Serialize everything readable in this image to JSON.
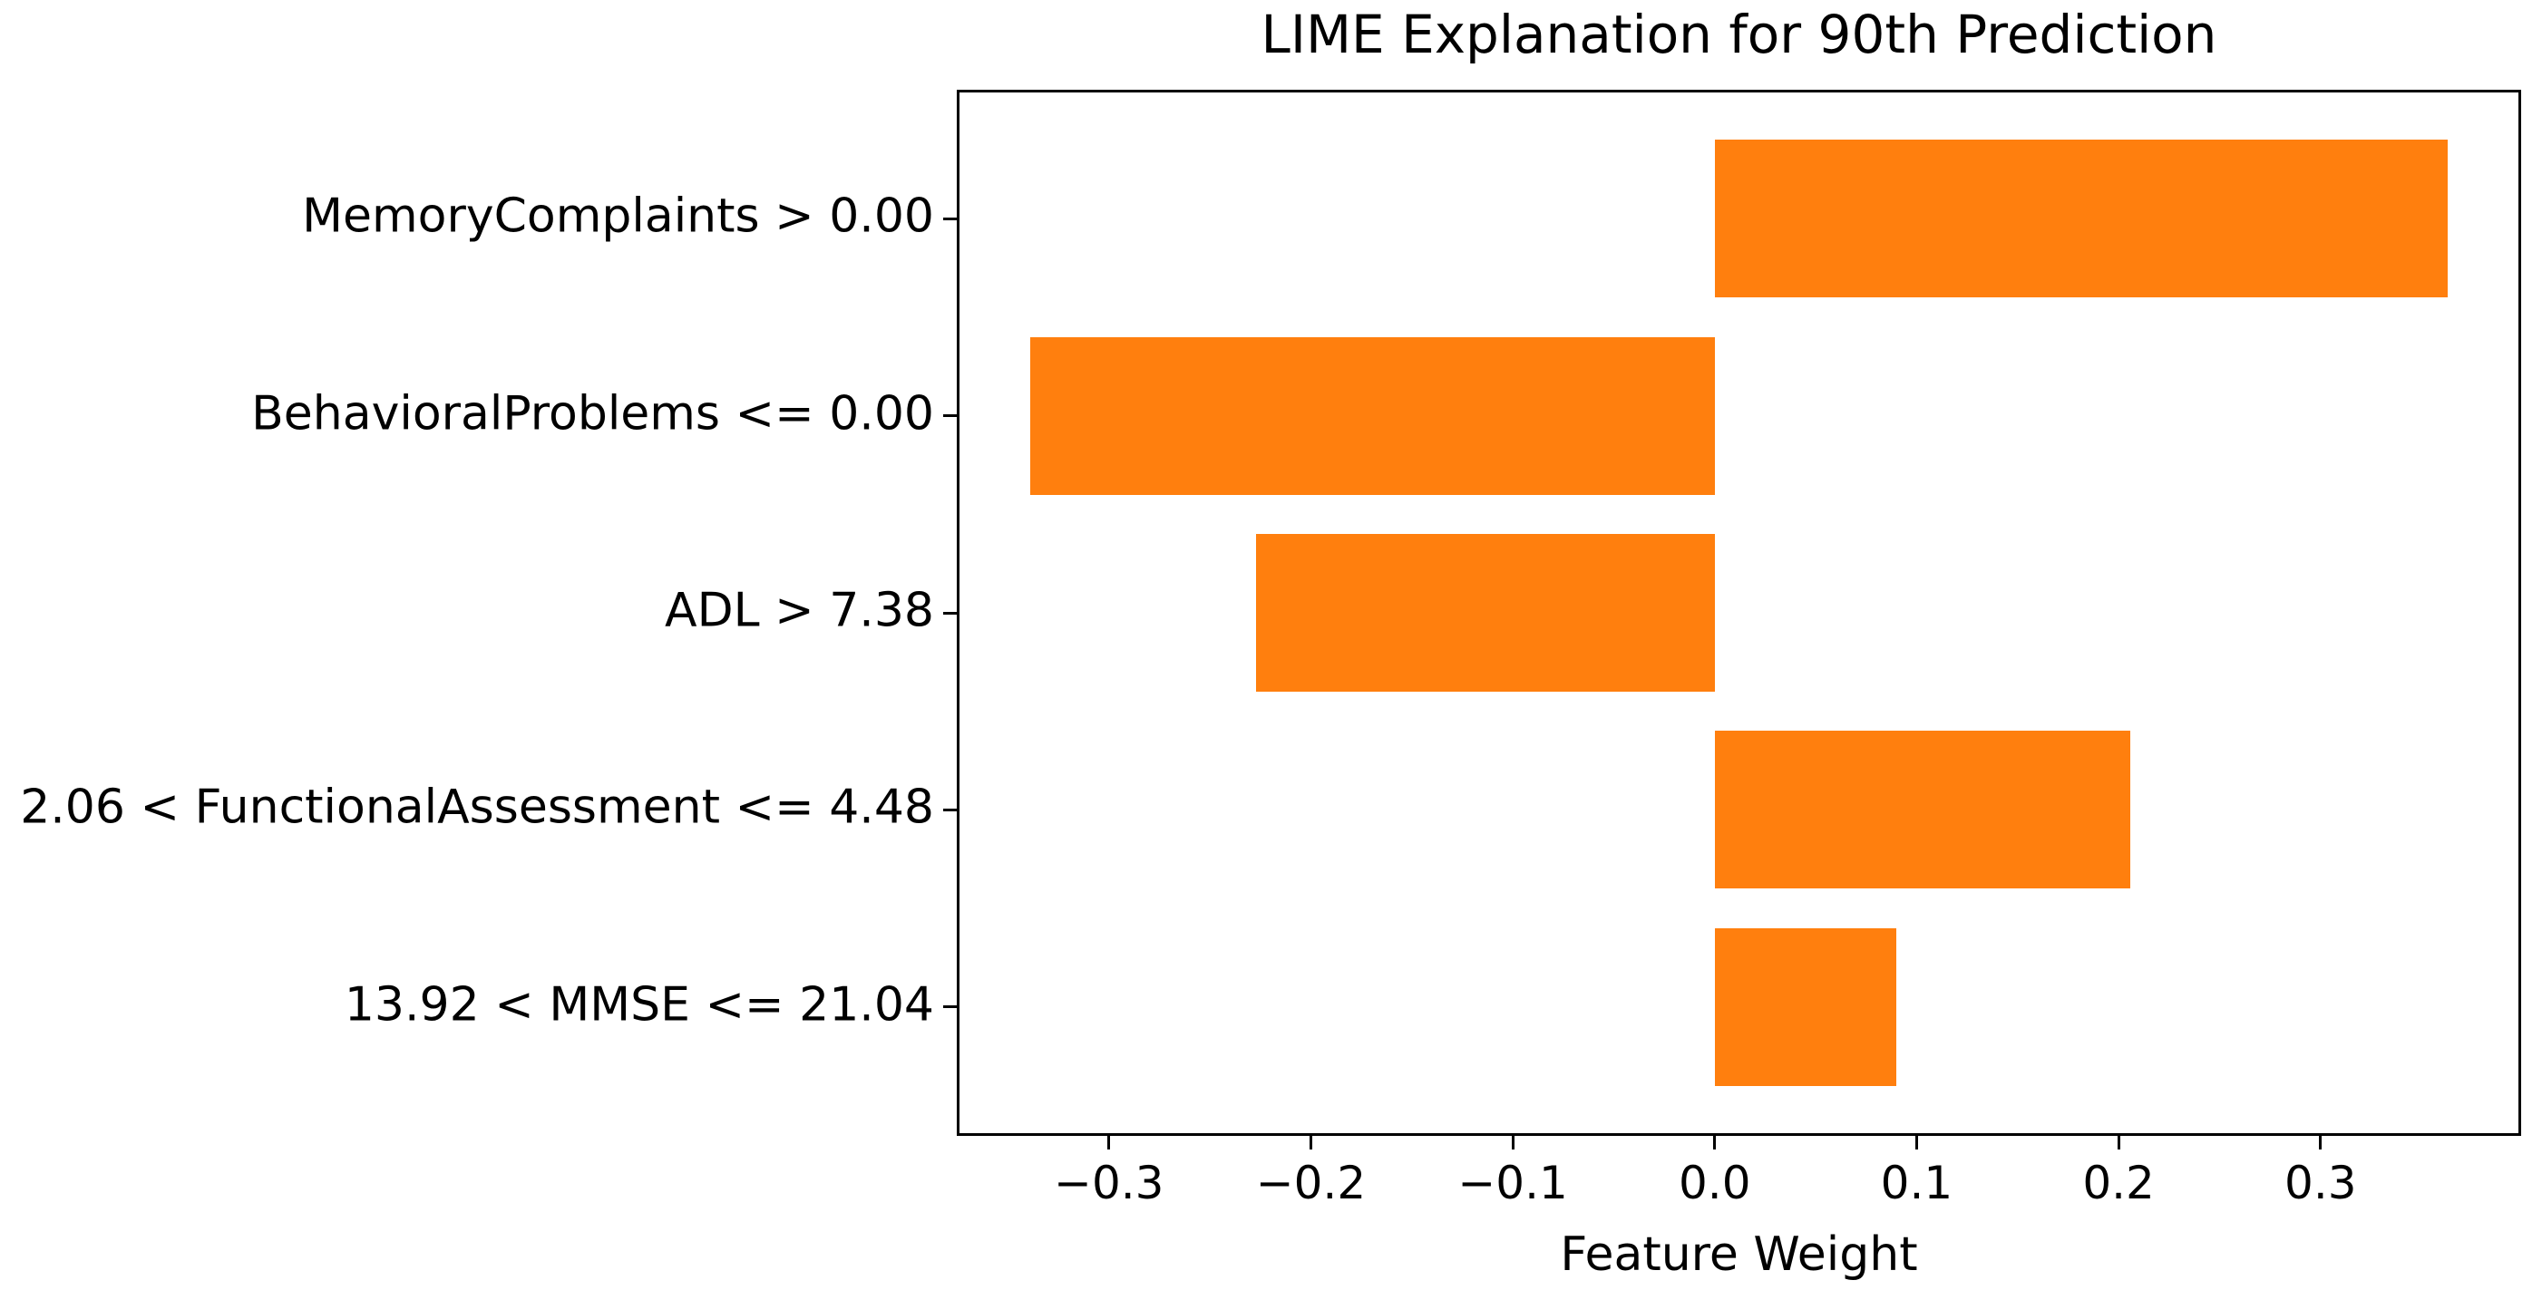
{
  "chart_data": {
    "type": "bar",
    "orientation": "horizontal",
    "title": "LIME Explanation for 90th Prediction",
    "xlabel": "Feature Weight",
    "categories": [
      "MemoryComplaints > 0.00",
      "BehavioralProblems <= 0.00",
      "ADL > 7.38",
      "2.06 < FunctionalAssessment <= 4.48",
      "13.92 < MMSE <= 21.04"
    ],
    "values": [
      0.363,
      -0.339,
      -0.227,
      0.206,
      0.09
    ],
    "bar_color": "#ff7f0e",
    "xlim": [
      -0.374,
      0.398
    ],
    "xticks": [
      -0.3,
      -0.2,
      -0.1,
      0.0,
      0.1,
      0.2,
      0.3
    ],
    "xtick_labels": [
      "−0.3",
      "−0.2",
      "−0.1",
      "0.0",
      "0.1",
      "0.2",
      "0.3"
    ],
    "legend": null,
    "grid": false,
    "background_color": "#ffffff",
    "spine_color": "#000000",
    "bar_height_frac": 0.8
  }
}
